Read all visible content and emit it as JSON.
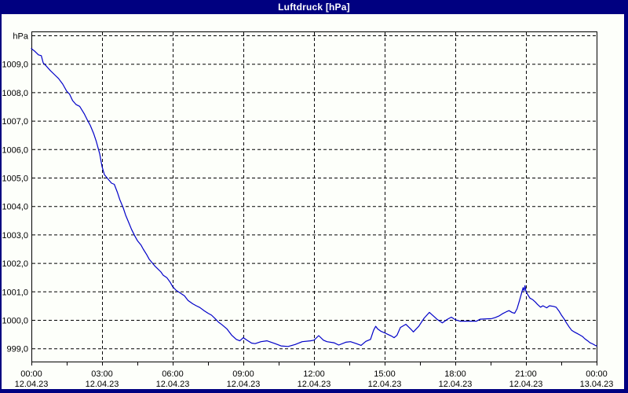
{
  "window": {
    "title": "Luftdruck [hPa]"
  },
  "colors": {
    "frame": "#000080",
    "title_text": "#ffffff",
    "background": "#fdfffa",
    "grid": "#000000",
    "line": "#0000c8",
    "text": "#000000"
  },
  "chart_data": {
    "type": "line",
    "title": "Luftdruck [hPa]",
    "ylabel": "hPa",
    "xlabel": "",
    "grid": "dashed",
    "legend": "none",
    "xlim_hours": [
      0,
      24
    ],
    "ylim": [
      998.55,
      1010.15
    ],
    "y_ticks": [
      {
        "value": 1010,
        "label": "hPa"
      },
      {
        "value": 1009,
        "label": "1009,0"
      },
      {
        "value": 1008,
        "label": "1008,0"
      },
      {
        "value": 1007,
        "label": "1007,0"
      },
      {
        "value": 1006,
        "label": "1006,0"
      },
      {
        "value": 1005,
        "label": "1005,0"
      },
      {
        "value": 1004,
        "label": "1004,0"
      },
      {
        "value": 1003,
        "label": "1003,0"
      },
      {
        "value": 1002,
        "label": "1002,0"
      },
      {
        "value": 1001,
        "label": "1001,0"
      },
      {
        "value": 1000,
        "label": "1000,0"
      },
      {
        "value": 999,
        "label": "999,0"
      }
    ],
    "x_minor_tick_step_hours": 1.5,
    "x_ticks": [
      {
        "hour": 0,
        "time": "00:00",
        "date": "12.04.23"
      },
      {
        "hour": 3,
        "time": "03:00",
        "date": "12.04.23"
      },
      {
        "hour": 6,
        "time": "06:00",
        "date": "12.04.23"
      },
      {
        "hour": 9,
        "time": "09:00",
        "date": "12.04.23"
      },
      {
        "hour": 12,
        "time": "12:00",
        "date": "12.04.23"
      },
      {
        "hour": 15,
        "time": "15:00",
        "date": "12.04.23"
      },
      {
        "hour": 18,
        "time": "18:00",
        "date": "12.04.23"
      },
      {
        "hour": 21,
        "time": "21:00",
        "date": "12.04.23"
      },
      {
        "hour": 24,
        "time": "00:00",
        "date": "13.04.23"
      }
    ],
    "series": [
      {
        "name": "Luftdruck",
        "unit": "hPa",
        "points": [
          [
            0.0,
            1009.55
          ],
          [
            0.15,
            1009.45
          ],
          [
            0.3,
            1009.33
          ],
          [
            0.42,
            1009.3
          ],
          [
            0.5,
            1009.05
          ],
          [
            0.65,
            1008.92
          ],
          [
            0.8,
            1008.78
          ],
          [
            1.0,
            1008.62
          ],
          [
            1.15,
            1008.5
          ],
          [
            1.33,
            1008.3
          ],
          [
            1.5,
            1008.05
          ],
          [
            1.62,
            1007.95
          ],
          [
            1.75,
            1007.72
          ],
          [
            1.9,
            1007.58
          ],
          [
            2.05,
            1007.52
          ],
          [
            2.25,
            1007.25
          ],
          [
            2.4,
            1007.0
          ],
          [
            2.5,
            1006.85
          ],
          [
            2.65,
            1006.55
          ],
          [
            2.75,
            1006.3
          ],
          [
            2.9,
            1005.85
          ],
          [
            3.0,
            1005.4
          ],
          [
            3.1,
            1005.12
          ],
          [
            3.25,
            1004.97
          ],
          [
            3.4,
            1004.82
          ],
          [
            3.52,
            1004.78
          ],
          [
            3.65,
            1004.5
          ],
          [
            3.75,
            1004.25
          ],
          [
            3.9,
            1003.95
          ],
          [
            4.0,
            1003.7
          ],
          [
            4.15,
            1003.4
          ],
          [
            4.25,
            1003.2
          ],
          [
            4.4,
            1002.95
          ],
          [
            4.5,
            1002.8
          ],
          [
            4.65,
            1002.65
          ],
          [
            4.75,
            1002.5
          ],
          [
            4.9,
            1002.3
          ],
          [
            5.0,
            1002.15
          ],
          [
            5.15,
            1002.0
          ],
          [
            5.25,
            1001.9
          ],
          [
            5.4,
            1001.78
          ],
          [
            5.5,
            1001.7
          ],
          [
            5.6,
            1001.58
          ],
          [
            5.75,
            1001.5
          ],
          [
            5.9,
            1001.33
          ],
          [
            6.0,
            1001.18
          ],
          [
            6.15,
            1001.05
          ],
          [
            6.3,
            1000.97
          ],
          [
            6.5,
            1000.86
          ],
          [
            6.65,
            1000.7
          ],
          [
            6.85,
            1000.58
          ],
          [
            7.0,
            1000.51
          ],
          [
            7.15,
            1000.45
          ],
          [
            7.35,
            1000.33
          ],
          [
            7.5,
            1000.25
          ],
          [
            7.65,
            1000.18
          ],
          [
            7.8,
            1000.06
          ],
          [
            7.95,
            999.93
          ],
          [
            8.1,
            999.84
          ],
          [
            8.3,
            999.7
          ],
          [
            8.5,
            999.48
          ],
          [
            8.7,
            999.33
          ],
          [
            8.85,
            999.28
          ],
          [
            9.0,
            999.39
          ],
          [
            9.15,
            999.3
          ],
          [
            9.35,
            999.2
          ],
          [
            9.5,
            999.18
          ],
          [
            9.75,
            999.25
          ],
          [
            10.0,
            999.28
          ],
          [
            10.35,
            999.18
          ],
          [
            10.6,
            999.1
          ],
          [
            10.9,
            999.08
          ],
          [
            11.2,
            999.15
          ],
          [
            11.5,
            999.25
          ],
          [
            11.85,
            999.28
          ],
          [
            12.0,
            999.3
          ],
          [
            12.2,
            999.46
          ],
          [
            12.4,
            999.3
          ],
          [
            12.55,
            999.25
          ],
          [
            12.85,
            999.21
          ],
          [
            13.05,
            999.13
          ],
          [
            13.35,
            999.23
          ],
          [
            13.55,
            999.25
          ],
          [
            13.8,
            999.18
          ],
          [
            14.0,
            999.12
          ],
          [
            14.2,
            999.26
          ],
          [
            14.4,
            999.33
          ],
          [
            14.53,
            999.65
          ],
          [
            14.62,
            999.79
          ],
          [
            14.7,
            999.7
          ],
          [
            14.85,
            999.61
          ],
          [
            15.0,
            999.56
          ],
          [
            15.12,
            999.51
          ],
          [
            15.28,
            999.45
          ],
          [
            15.4,
            999.39
          ],
          [
            15.52,
            999.47
          ],
          [
            15.67,
            999.75
          ],
          [
            15.9,
            999.86
          ],
          [
            16.1,
            999.7
          ],
          [
            16.22,
            999.59
          ],
          [
            16.45,
            999.79
          ],
          [
            16.67,
            1000.07
          ],
          [
            16.9,
            1000.28
          ],
          [
            17.1,
            1000.13
          ],
          [
            17.22,
            1000.04
          ],
          [
            17.45,
            999.91
          ],
          [
            17.67,
            1000.04
          ],
          [
            17.83,
            1000.11
          ],
          [
            18.0,
            1000.02
          ],
          [
            18.2,
            999.97
          ],
          [
            18.9,
            999.97
          ],
          [
            19.05,
            1000.04
          ],
          [
            19.55,
            1000.06
          ],
          [
            19.7,
            1000.1
          ],
          [
            19.85,
            1000.15
          ],
          [
            20.0,
            1000.23
          ],
          [
            20.17,
            1000.3
          ],
          [
            20.28,
            1000.34
          ],
          [
            20.42,
            1000.27
          ],
          [
            20.52,
            1000.25
          ],
          [
            20.62,
            1000.4
          ],
          [
            20.72,
            1000.68
          ],
          [
            20.83,
            1001.0
          ],
          [
            20.88,
            1001.15
          ],
          [
            20.92,
            1001.04
          ],
          [
            20.96,
            1001.22
          ],
          [
            21.0,
            1001.01
          ],
          [
            21.1,
            1000.87
          ],
          [
            21.17,
            1000.78
          ],
          [
            21.28,
            1000.73
          ],
          [
            21.4,
            1000.64
          ],
          [
            21.5,
            1000.55
          ],
          [
            21.62,
            1000.46
          ],
          [
            21.72,
            1000.51
          ],
          [
            21.88,
            1000.44
          ],
          [
            22.0,
            1000.51
          ],
          [
            22.17,
            1000.49
          ],
          [
            22.28,
            1000.46
          ],
          [
            22.4,
            1000.33
          ],
          [
            22.5,
            1000.19
          ],
          [
            22.62,
            1000.05
          ],
          [
            22.72,
            999.91
          ],
          [
            22.83,
            999.77
          ],
          [
            22.94,
            999.65
          ],
          [
            23.05,
            999.59
          ],
          [
            23.17,
            999.54
          ],
          [
            23.28,
            999.49
          ],
          [
            23.4,
            999.43
          ],
          [
            23.5,
            999.35
          ],
          [
            23.62,
            999.28
          ],
          [
            23.72,
            999.21
          ],
          [
            23.83,
            999.17
          ],
          [
            23.94,
            999.12
          ],
          [
            24.0,
            999.1
          ]
        ]
      }
    ]
  }
}
